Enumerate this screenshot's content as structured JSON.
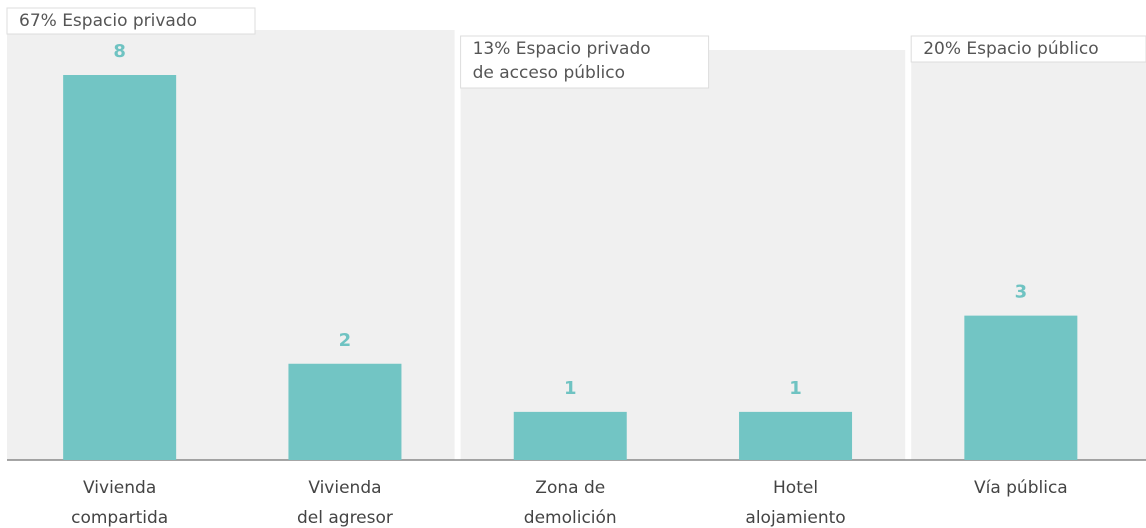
{
  "chart_data": {
    "type": "bar",
    "categories": [
      [
        "Vivienda",
        "compartida"
      ],
      [
        "Vivienda",
        "del agresor"
      ],
      [
        "Zona de",
        "demolición"
      ],
      [
        "Hotel",
        "alojamiento"
      ],
      [
        "Vía pública"
      ]
    ],
    "values": [
      8,
      2,
      1,
      1,
      3
    ],
    "color": "#72c5c4",
    "ylim": [
      0,
      8
    ],
    "groups": [
      {
        "label": [
          "67% Espacio privado"
        ],
        "start": 0,
        "end": 1
      },
      {
        "label": [
          "13% Espacio privado",
          "de acceso público"
        ],
        "start": 2,
        "end": 3
      },
      {
        "label": [
          "20% Espacio público"
        ],
        "start": 4,
        "end": 4
      }
    ]
  }
}
